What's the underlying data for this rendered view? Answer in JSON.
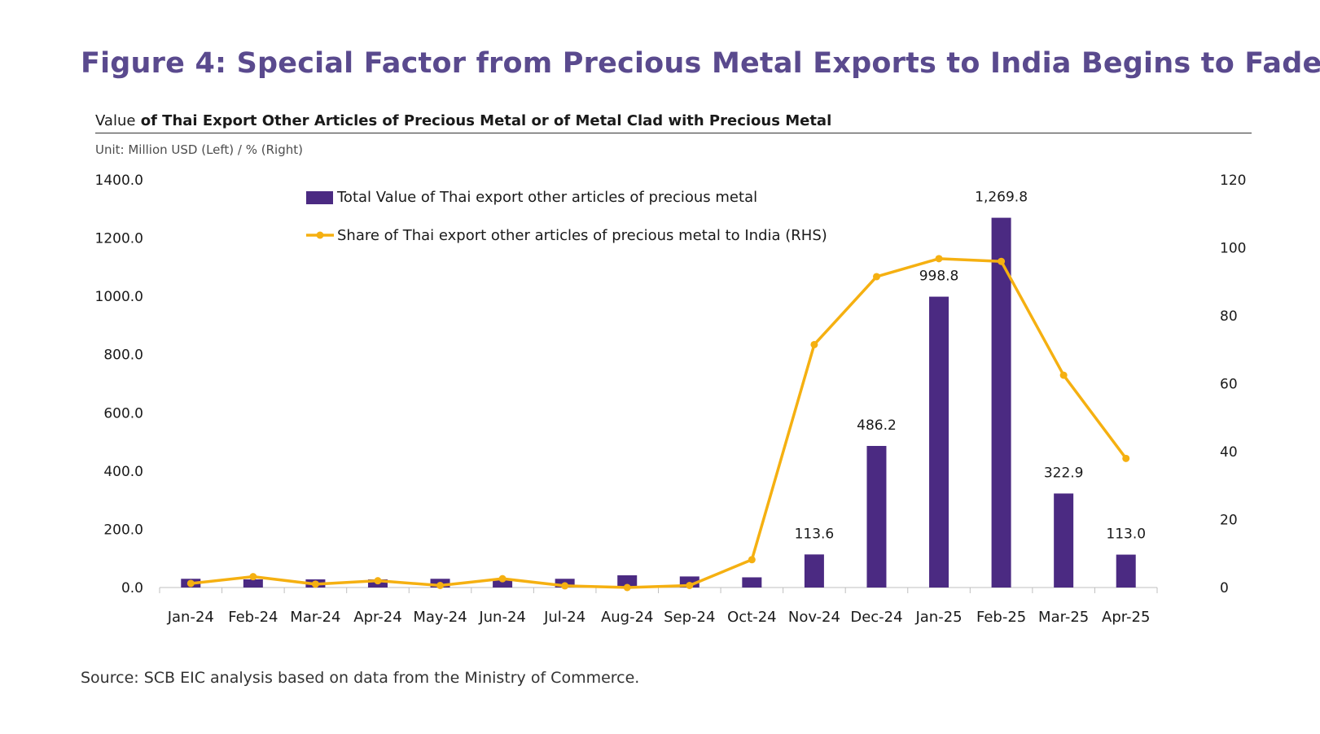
{
  "figure_title": "Figure 4: Special Factor from Precious Metal Exports to India Begins to Fade.",
  "subtitle_lead": "Value",
  "subtitle_rest": " of Thai Export Other Articles of Precious Metal or of Metal Clad with Precious Metal",
  "unit_note": "Unit: Million  USD  (Left) / % (Right)",
  "source": "Source: SCB EIC analysis based on data from the Ministry of Commerce.",
  "colors": {
    "title": "#5a4a8e",
    "bar": "#4b2a82",
    "line": "#f5b011"
  },
  "chart_data": {
    "type": "bar",
    "categories": [
      "Jan-24",
      "Feb-24",
      "Mar-24",
      "Apr-24",
      "May-24",
      "Jun-24",
      "Jul-24",
      "Aug-24",
      "Sep-24",
      "Oct-24",
      "Nov-24",
      "Dec-24",
      "Jan-25",
      "Feb-25",
      "Mar-25",
      "Apr-25"
    ],
    "series": [
      {
        "name": "Total Value of Thai export other articles of precious metal",
        "type": "bar",
        "axis": "left",
        "values": [
          30,
          28,
          28,
          28,
          30,
          30,
          30,
          42,
          38,
          35,
          113.6,
          486.2,
          998.8,
          1269.8,
          322.9,
          113.0
        ]
      },
      {
        "name": "Share of Thai export other articles of precious metal to India (RHS)",
        "type": "line",
        "axis": "right",
        "values": [
          1.2,
          3.2,
          1.0,
          2.0,
          0.6,
          2.6,
          0.5,
          0.0,
          0.6,
          8.2,
          71.5,
          91.5,
          96.8,
          96.0,
          62.5,
          38.0
        ]
      }
    ],
    "data_labels": [
      {
        "category": "Nov-24",
        "text": "113.6"
      },
      {
        "category": "Dec-24",
        "text": "486.2"
      },
      {
        "category": "Jan-25",
        "text": "998.8"
      },
      {
        "category": "Feb-25",
        "text": "1,269.8"
      },
      {
        "category": "Mar-25",
        "text": "322.9"
      },
      {
        "category": "Apr-25",
        "text": "113.0"
      }
    ],
    "y_left": {
      "min": 0,
      "max": 1400,
      "step": 200,
      "tick_labels": [
        "0.0",
        "200.0",
        "400.0",
        "600.0",
        "800.0",
        "1000.0",
        "1200.0",
        "1400.0"
      ]
    },
    "y_right": {
      "min": 0,
      "max": 120,
      "step": 20,
      "tick_labels": [
        "0",
        "20",
        "40",
        "60",
        "80",
        "100",
        "120"
      ]
    },
    "grid": false,
    "legend_position": "top-left"
  }
}
